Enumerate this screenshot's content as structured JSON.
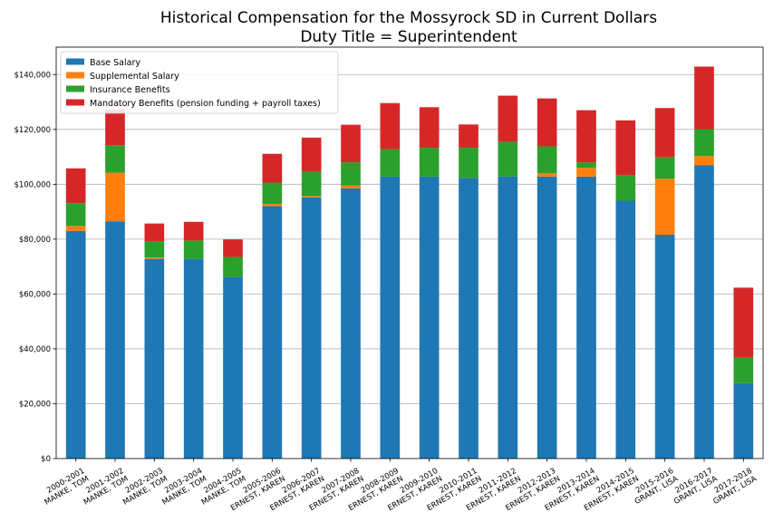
{
  "chart_data": {
    "type": "bar",
    "stacked": true,
    "title_lines": [
      "Historical Compensation for the Mossyrock SD in Current Dollars",
      "Duty Title = Superintendent"
    ],
    "xlabel": "",
    "ylabel": "",
    "ylim": [
      0,
      150000
    ],
    "yticks": [
      0,
      20000,
      40000,
      60000,
      80000,
      100000,
      120000,
      140000
    ],
    "ytick_labels": [
      "$0",
      "$20,000",
      "$40,000",
      "$60,000",
      "$80,000",
      "$100,000",
      "$120,000",
      "$140,000"
    ],
    "grid": "horizontal",
    "legend_position": "top-left",
    "categories": [
      [
        "2000-2001",
        "MANKE, TOM"
      ],
      [
        "2001-2002",
        "MANKE, TOM"
      ],
      [
        "2002-2003",
        "MANKE, TOM"
      ],
      [
        "2003-2004",
        "MANKE, TOM"
      ],
      [
        "2004-2005",
        "MANKE, TOM"
      ],
      [
        "2005-2006",
        "ERNEST, KAREN"
      ],
      [
        "2006-2007",
        "ERNEST, KAREN"
      ],
      [
        "2007-2008",
        "ERNEST, KAREN"
      ],
      [
        "2008-2009",
        "ERNEST, KAREN"
      ],
      [
        "2009-2010",
        "ERNEST, KAREN"
      ],
      [
        "2010-2011",
        "ERNEST, KAREN"
      ],
      [
        "2011-2012",
        "ERNEST, KAREN"
      ],
      [
        "2012-2013",
        "ERNEST, KAREN"
      ],
      [
        "2013-2014",
        "ERNEST, KAREN"
      ],
      [
        "2014-2015",
        "ERNEST, KAREN"
      ],
      [
        "2015-2016",
        "GRANT, LISA"
      ],
      [
        "2016-2017",
        "GRANT, LISA"
      ],
      [
        "2017-2018",
        "GRANT, LISA"
      ]
    ],
    "series": [
      {
        "name": "Base Salary",
        "color": "#1f77b4",
        "values": [
          83000,
          86500,
          72800,
          72800,
          66200,
          92000,
          95200,
          98500,
          102800,
          102800,
          102300,
          102800,
          102800,
          102800,
          94000,
          81600,
          107000,
          27500
        ]
      },
      {
        "name": "Supplemental Salary",
        "color": "#ff7f0e",
        "values": [
          1800,
          17700,
          500,
          0,
          0,
          800,
          500,
          1000,
          0,
          0,
          0,
          0,
          1200,
          3200,
          0,
          20400,
          3300,
          0
        ]
      },
      {
        "name": "Insurance Benefits",
        "color": "#2ca02c",
        "values": [
          8300,
          10000,
          6000,
          6700,
          7300,
          7800,
          8900,
          8500,
          10000,
          10500,
          11000,
          12700,
          9800,
          2000,
          9300,
          8000,
          9800,
          9500
        ]
      },
      {
        "name": "Mandatory Benefits (pension funding + payroll taxes)",
        "color": "#d62728",
        "values": [
          12700,
          13000,
          6400,
          6800,
          6400,
          10500,
          12400,
          13700,
          16800,
          14800,
          8500,
          16800,
          17500,
          19000,
          20000,
          17800,
          22800,
          25300
        ]
      }
    ]
  }
}
